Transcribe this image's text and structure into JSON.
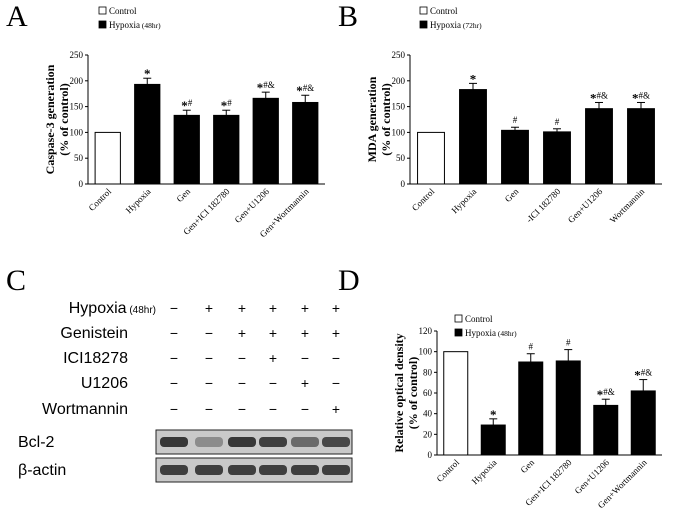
{
  "panel_letters": [
    "A",
    "B",
    "C",
    "D"
  ],
  "western_blot": {
    "rows": [
      {
        "label": "Hypoxia",
        "sub": "(48hr)",
        "signs": [
          "−",
          "+",
          "+",
          "+",
          "+",
          "+"
        ]
      },
      {
        "label": "Genistein",
        "sub": "",
        "signs": [
          "−",
          "−",
          "+",
          "+",
          "+",
          "+"
        ]
      },
      {
        "label": "ICI18278",
        "sub": "",
        "signs": [
          "−",
          "−",
          "−",
          "+",
          "−",
          "−"
        ]
      },
      {
        "label": "U1206",
        "sub": "",
        "signs": [
          "−",
          "−",
          "−",
          "−",
          "+",
          "−"
        ]
      },
      {
        "label": "Wortmannin",
        "sub": "",
        "signs": [
          "−",
          "−",
          "−",
          "−",
          "−",
          "+"
        ]
      }
    ],
    "bands": [
      {
        "label": "Bcl-2",
        "intensity": [
          0.85,
          0.35,
          0.85,
          0.8,
          0.55,
          0.75
        ]
      },
      {
        "label": "β-actin",
        "intensity": [
          0.8,
          0.8,
          0.8,
          0.8,
          0.8,
          0.8
        ]
      }
    ]
  },
  "chart_data": [
    {
      "type": "bar",
      "panel": "A",
      "title": "",
      "xlabel": "",
      "ylabel": "Caspase-3 generation",
      "ylabel2": "(% of control)",
      "ylim": [
        0,
        250
      ],
      "yticks": [
        "0",
        "50",
        "100",
        "150",
        "200",
        "250"
      ],
      "categories": [
        "Control",
        "Hypoxia",
        "Gen",
        "Gen+ICI 182780",
        "Gen+U1206",
        "Gen+Wortmannin"
      ],
      "values": [
        100,
        193,
        133,
        133,
        166,
        158
      ],
      "errors": [
        0,
        12,
        10,
        10,
        12,
        14
      ],
      "annotations": [
        {
          "star": "",
          "marks": ""
        },
        {
          "star": "*",
          "marks": ""
        },
        {
          "star": "*",
          "marks": "#"
        },
        {
          "star": "*",
          "marks": "#"
        },
        {
          "star": "*",
          "marks": "#&"
        },
        {
          "star": "*",
          "marks": "#&"
        }
      ],
      "legend": [
        {
          "label": "Control",
          "extra": "",
          "color": "#ffffff"
        },
        {
          "label": "Hypoxia",
          "extra": "(48hr)",
          "color": "#000000"
        }
      ]
    },
    {
      "type": "bar",
      "panel": "B",
      "title": "",
      "xlabel": "",
      "ylabel": "MDA generation",
      "ylabel2": "(% of control)",
      "ylim": [
        0,
        250
      ],
      "yticks": [
        "0",
        "50",
        "100",
        "150",
        "200",
        "250"
      ],
      "categories": [
        "Control",
        "Hypoxia",
        "Gen",
        "-ICI 182780",
        "Gen+U1206",
        "Wortmannin"
      ],
      "values": [
        100,
        183,
        104,
        101,
        146,
        146
      ],
      "errors": [
        0,
        12,
        6,
        6,
        12,
        12
      ],
      "annotations": [
        {
          "star": "",
          "marks": ""
        },
        {
          "star": "*",
          "marks": ""
        },
        {
          "star": "",
          "marks": "#"
        },
        {
          "star": "",
          "marks": "#"
        },
        {
          "star": "*",
          "marks": "#&"
        },
        {
          "star": "*",
          "marks": "#&"
        }
      ],
      "legend": [
        {
          "label": "Control",
          "extra": "",
          "color": "#ffffff"
        },
        {
          "label": "Hypoxia",
          "extra": "(72hr)",
          "color": "#000000"
        }
      ]
    },
    {
      "type": "bar",
      "panel": "D",
      "title": "",
      "xlabel": "",
      "ylabel": "Relative optical density",
      "ylabel2": "(% of control)",
      "ylim": [
        0,
        120
      ],
      "yticks": [
        "0",
        "20",
        "40",
        "60",
        "80",
        "100",
        "120"
      ],
      "categories": [
        "Control",
        "Hypoxia",
        "Gen",
        "Gen+ICI 182780",
        "Gen+U1206",
        "Gen+Wortmannin"
      ],
      "values": [
        100,
        29,
        90,
        91,
        48,
        62
      ],
      "errors": [
        0,
        6,
        8,
        11,
        6,
        11
      ],
      "annotations": [
        {
          "star": "",
          "marks": ""
        },
        {
          "star": "*",
          "marks": ""
        },
        {
          "star": "",
          "marks": "#"
        },
        {
          "star": "",
          "marks": "#"
        },
        {
          "star": "*",
          "marks": "#&"
        },
        {
          "star": "*",
          "marks": "#&"
        }
      ],
      "legend": [
        {
          "label": "Control",
          "extra": "",
          "color": "#ffffff"
        },
        {
          "label": "Hypoxia",
          "extra": "(48hr)",
          "color": "#000000"
        }
      ]
    }
  ]
}
